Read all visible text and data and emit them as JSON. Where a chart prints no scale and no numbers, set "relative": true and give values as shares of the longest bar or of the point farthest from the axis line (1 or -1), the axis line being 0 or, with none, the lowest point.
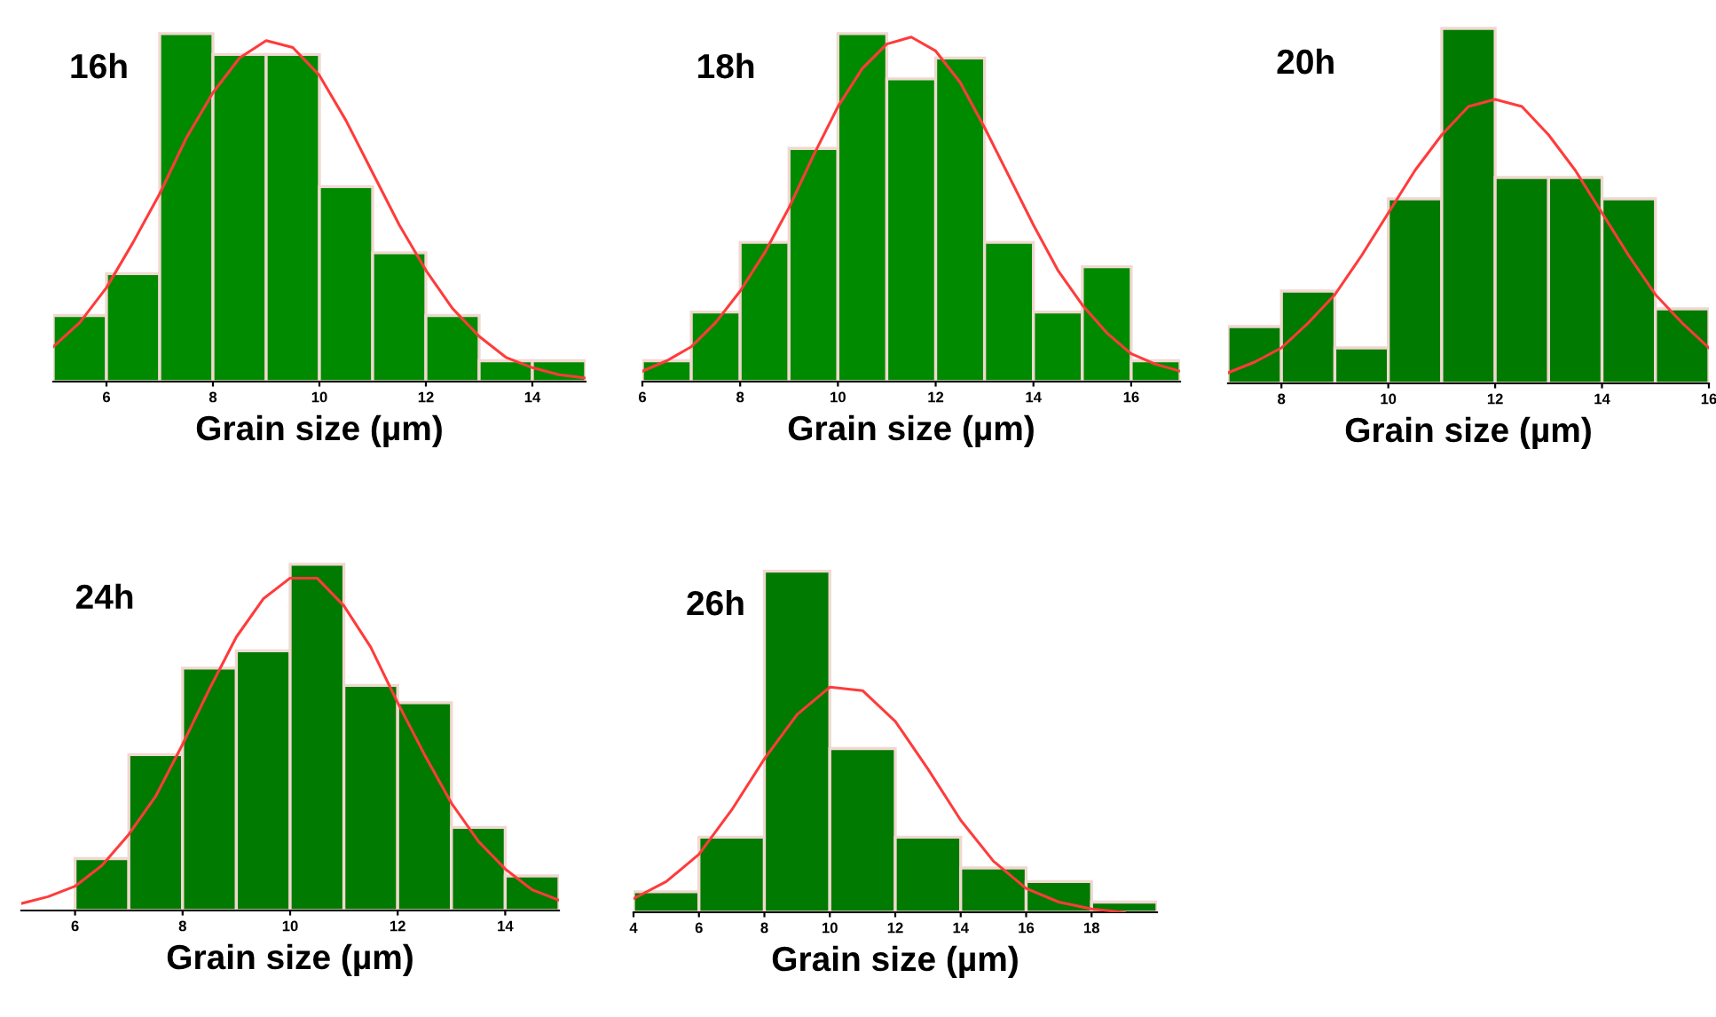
{
  "chart_data": [
    {
      "type": "histogram",
      "title": "16h",
      "xlabel": "Grain size (µm)",
      "relative": true,
      "xlim": [
        5,
        15
      ],
      "xticks": [
        6,
        8,
        10,
        12,
        14
      ],
      "grid": false,
      "legend": false,
      "series": [
        {
          "color": "#008a00",
          "bins": [
            5,
            6,
            7,
            8,
            9,
            10,
            11,
            12,
            13,
            14,
            15
          ],
          "values": [
            0.19,
            0.31,
            1,
            0.94,
            0.94,
            0.56,
            0.37,
            0.19,
            0.06,
            0.06
          ]
        },
        {
          "type": "line",
          "color": "#ff3b3b",
          "x": [
            5,
            5.5,
            6,
            6.5,
            7,
            7.5,
            8,
            8.5,
            9,
            9.5,
            10,
            10.5,
            11,
            11.5,
            12,
            12.5,
            13,
            13.5,
            14,
            14.5,
            15
          ],
          "values": [
            0.1,
            0.17,
            0.27,
            0.4,
            0.54,
            0.7,
            0.83,
            0.93,
            0.98,
            0.96,
            0.88,
            0.75,
            0.6,
            0.45,
            0.32,
            0.21,
            0.13,
            0.07,
            0.04,
            0.02,
            0.01
          ]
        }
      ]
    },
    {
      "type": "histogram",
      "title": "18h",
      "xlabel": "Grain size (µm)",
      "relative": true,
      "xlim": [
        6,
        17
      ],
      "xticks": [
        6,
        8,
        10,
        12,
        14,
        16
      ],
      "grid": false,
      "legend": false,
      "series": [
        {
          "color": "#008a00",
          "bins": [
            6,
            7,
            8,
            9,
            10,
            11,
            12,
            13,
            14,
            15,
            16,
            17
          ],
          "values": [
            0.06,
            0.2,
            0.4,
            0.67,
            1,
            0.87,
            0.93,
            0.4,
            0.2,
            0.33,
            0.06
          ]
        },
        {
          "type": "line",
          "color": "#ff3b3b",
          "x": [
            6,
            6.5,
            7,
            7.5,
            8,
            8.5,
            9,
            9.5,
            10,
            10.5,
            11,
            11.5,
            12,
            12.5,
            13,
            13.5,
            14,
            14.5,
            15,
            15.5,
            16,
            16.5,
            17
          ],
          "values": [
            0.03,
            0.06,
            0.1,
            0.17,
            0.26,
            0.37,
            0.5,
            0.65,
            0.79,
            0.9,
            0.97,
            0.99,
            0.95,
            0.86,
            0.73,
            0.59,
            0.45,
            0.32,
            0.22,
            0.14,
            0.08,
            0.05,
            0.03
          ]
        }
      ]
    },
    {
      "type": "histogram",
      "title": "20h",
      "xlabel": "Grain size (µm)",
      "relative": true,
      "xlim": [
        7,
        16
      ],
      "xticks": [
        8,
        10,
        12,
        14,
        16
      ],
      "grid": false,
      "legend": false,
      "series": [
        {
          "color": "#007a00",
          "bins": [
            7,
            8,
            9,
            10,
            11,
            12,
            13,
            14,
            15,
            16
          ],
          "values": [
            0.16,
            0.26,
            0.1,
            0.52,
            1,
            0.58,
            0.58,
            0.52,
            0.21
          ]
        },
        {
          "type": "line",
          "color": "#ff3b3b",
          "x": [
            7,
            7.5,
            8,
            8.5,
            9,
            9.5,
            10,
            10.5,
            11,
            11.5,
            12,
            12.5,
            13,
            13.5,
            14,
            14.5,
            15,
            15.5,
            16
          ],
          "values": [
            0.03,
            0.06,
            0.1,
            0.17,
            0.25,
            0.36,
            0.48,
            0.6,
            0.7,
            0.78,
            0.8,
            0.78,
            0.7,
            0.6,
            0.48,
            0.36,
            0.25,
            0.17,
            0.1
          ]
        }
      ]
    },
    {
      "type": "histogram",
      "title": "24h",
      "xlabel": "Grain size (µm)",
      "relative": true,
      "xlim": [
        5,
        15
      ],
      "xticks": [
        6,
        8,
        10,
        12,
        14
      ],
      "grid": false,
      "legend": false,
      "series": [
        {
          "color": "#007a00",
          "bins": [
            6,
            7,
            8,
            9,
            10,
            11,
            12,
            13,
            14,
            15
          ],
          "values": [
            0.15,
            0.45,
            0.7,
            0.75,
            1,
            0.65,
            0.6,
            0.24,
            0.1
          ]
        },
        {
          "type": "line",
          "color": "#ff3b3b",
          "x": [
            5,
            5.5,
            6,
            6.5,
            7,
            7.5,
            8,
            8.5,
            9,
            9.5,
            10,
            10.5,
            11,
            11.5,
            12,
            12.5,
            13,
            13.5,
            14,
            14.5,
            15
          ],
          "values": [
            0.02,
            0.04,
            0.07,
            0.13,
            0.22,
            0.33,
            0.48,
            0.64,
            0.79,
            0.9,
            0.96,
            0.96,
            0.88,
            0.76,
            0.6,
            0.45,
            0.31,
            0.2,
            0.12,
            0.06,
            0.03
          ]
        }
      ]
    },
    {
      "type": "histogram",
      "title": "26h",
      "xlabel": "Grain size (µm)",
      "relative": true,
      "xlim": [
        4,
        20
      ],
      "xticks": [
        4,
        6,
        8,
        10,
        12,
        14,
        16,
        18
      ],
      "grid": false,
      "legend": false,
      "series": [
        {
          "color": "#007a00",
          "bins": [
            4,
            6,
            8,
            10,
            12,
            14,
            16,
            18,
            20
          ],
          "values": [
            0.06,
            0.22,
            1,
            0.48,
            0.22,
            0.13,
            0.09,
            0.03
          ]
        },
        {
          "type": "line",
          "color": "#ff3b3b",
          "x": [
            4,
            5,
            6,
            7,
            8,
            9,
            10,
            11,
            12,
            13,
            14,
            15,
            16,
            17,
            18,
            19
          ],
          "values": [
            0.04,
            0.09,
            0.17,
            0.3,
            0.45,
            0.58,
            0.66,
            0.65,
            0.56,
            0.42,
            0.27,
            0.15,
            0.07,
            0.03,
            0.01,
            0
          ]
        }
      ]
    }
  ]
}
